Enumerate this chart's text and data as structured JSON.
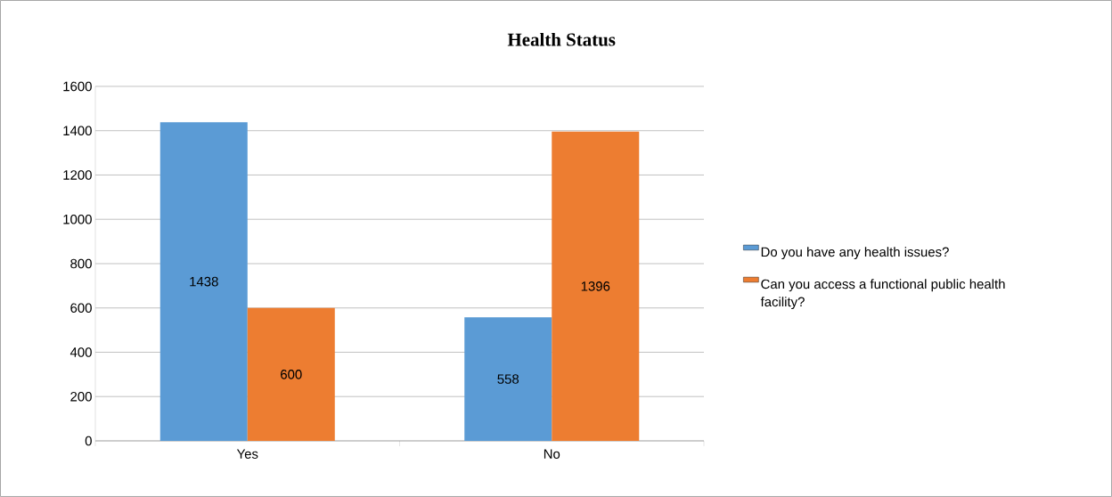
{
  "chart_data": {
    "type": "bar",
    "title": "Health Status",
    "categories": [
      "Yes",
      "No"
    ],
    "series": [
      {
        "name": "Do you have any health issues?",
        "color": "#5b9bd5",
        "values": [
          1438,
          558
        ]
      },
      {
        "name": "Can you access a functional public health facility?",
        "color": "#ed7d31",
        "values": [
          600,
          1396
        ]
      }
    ],
    "ylim": [
      0,
      1600
    ],
    "yticks": [
      0,
      200,
      400,
      600,
      800,
      1000,
      1200,
      1400,
      1600
    ],
    "grid": "y",
    "legend": "right",
    "data_labels": true
  }
}
